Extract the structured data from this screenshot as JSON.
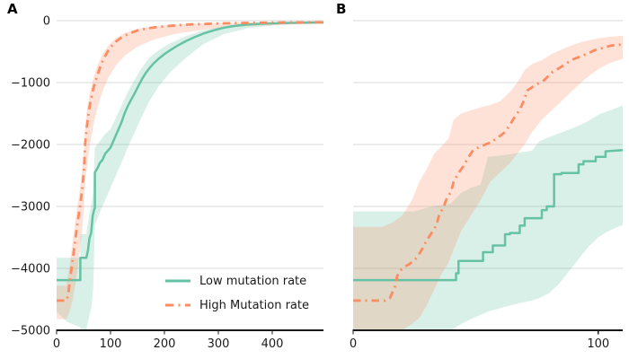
{
  "figure": {
    "panel_a_label": "A",
    "panel_b_label": "B",
    "colors": {
      "low_series": "#66c2a5",
      "high_series": "#fc8d62",
      "gridline": "#d9d9d9",
      "spine": "#1a1a1a",
      "tick_text": "#1a1a1a",
      "band_opacity": 0.25
    },
    "legend": {
      "items": [
        {
          "key": "low",
          "label": "Low mutation rate",
          "line_style": "solid"
        },
        {
          "key": "high",
          "label": "High Mutation rate",
          "line_style": "dashdot"
        }
      ]
    }
  },
  "chart_data": [
    {
      "type": "line",
      "panel": "A",
      "title": "",
      "xlabel": "",
      "ylabel": "",
      "xlim": [
        0,
        495
      ],
      "ylim": [
        -5000,
        0
      ],
      "xticks": [
        0,
        100,
        200,
        300,
        400
      ],
      "xticklabels": [
        "0",
        "100",
        "200",
        "300",
        "400"
      ],
      "yticks": [
        0,
        -1000,
        -2000,
        -3000,
        -4000,
        -5000
      ],
      "yticklabels": [
        "0",
        "−1000",
        "−2000",
        "−3000",
        "−4000",
        "−5000"
      ],
      "grid": true,
      "legend_position": "lower right",
      "series": [
        {
          "key": "low",
          "name": "Low mutation rate",
          "style": "solid",
          "x": [
            0,
            44,
            44,
            55,
            58,
            61,
            64,
            67,
            70,
            71,
            71,
            76,
            80,
            85,
            90,
            95,
            100,
            105,
            110,
            115,
            120,
            126,
            132,
            138,
            145,
            152,
            158,
            165,
            172,
            180,
            190,
            200,
            212,
            225,
            240,
            255,
            272,
            290,
            310,
            330,
            355,
            385,
            420,
            460,
            495
          ],
          "y": [
            -4190,
            -4190,
            -3830,
            -3830,
            -3720,
            -3510,
            -3430,
            -3150,
            -3040,
            -3030,
            -2450,
            -2380,
            -2300,
            -2250,
            -2150,
            -2100,
            -2050,
            -1950,
            -1850,
            -1750,
            -1650,
            -1500,
            -1380,
            -1280,
            -1170,
            -1050,
            -950,
            -850,
            -770,
            -690,
            -610,
            -540,
            -470,
            -400,
            -330,
            -270,
            -210,
            -160,
            -115,
            -85,
            -62,
            -47,
            -38,
            -32,
            -29
          ],
          "band": {
            "x": [
              0,
              20,
              44,
              44,
              55,
              60,
              65,
              68,
              71,
              80,
              90,
              100,
              110,
              120,
              132,
              145,
              158,
              172,
              190,
              212,
              240,
              272,
              310,
              355,
              420,
              495
            ],
            "upper": [
              -3830,
              -3830,
              -3830,
              -3450,
              -3450,
              -3150,
              -2950,
              -2750,
              -2050,
              -1950,
              -1830,
              -1750,
              -1570,
              -1380,
              -1150,
              -950,
              -760,
              -600,
              -470,
              -360,
              -250,
              -155,
              -85,
              -48,
              -30,
              -24
            ],
            "lower": [
              -4700,
              -4870,
              -4950,
              -5000,
              -5000,
              -4800,
              -4600,
              -4300,
              -3300,
              -3100,
              -2900,
              -2700,
              -2500,
              -2300,
              -2050,
              -1800,
              -1550,
              -1300,
              -1050,
              -820,
              -600,
              -380,
              -220,
              -120,
              -60,
              -38
            ]
          }
        },
        {
          "key": "high",
          "name": "High Mutation rate",
          "style": "dashdot",
          "x": [
            0,
            18,
            21,
            24,
            27,
            30,
            33,
            36,
            39,
            42,
            45,
            47,
            49,
            51,
            52,
            53,
            55,
            57,
            59,
            62,
            65,
            68,
            72,
            76,
            80,
            85,
            90,
            96,
            102,
            110,
            118,
            127,
            137,
            150,
            165,
            182,
            200,
            222,
            248,
            278,
            312,
            350,
            395,
            445,
            495
          ],
          "y": [
            -4520,
            -4520,
            -4450,
            -4250,
            -4050,
            -3850,
            -3650,
            -3450,
            -3250,
            -3080,
            -2900,
            -2750,
            -2580,
            -2380,
            -2180,
            -1980,
            -1800,
            -1650,
            -1500,
            -1350,
            -1220,
            -1100,
            -980,
            -870,
            -770,
            -660,
            -570,
            -480,
            -410,
            -340,
            -285,
            -240,
            -200,
            -160,
            -130,
            -108,
            -92,
            -76,
            -62,
            -52,
            -43,
            -37,
            -32,
            -29,
            -27
          ],
          "band": {
            "x": [
              0,
              18,
              24,
              30,
              36,
              42,
              47,
              51,
              53,
              57,
              62,
              68,
              76,
              85,
              96,
              110,
              127,
              150,
              182,
              222,
              278,
              350,
              445,
              495
            ],
            "upper": [
              -4280,
              -4280,
              -3950,
              -3550,
              -3150,
              -2800,
              -2450,
              -2050,
              -1700,
              -1400,
              -1150,
              -930,
              -720,
              -540,
              -400,
              -280,
              -200,
              -130,
              -88,
              -60,
              -42,
              -30,
              -24,
              -22
            ],
            "lower": [
              -4820,
              -4820,
              -4700,
              -4500,
              -4200,
              -3800,
              -3400,
              -3000,
              -2600,
              -2300,
              -2000,
              -1700,
              -1400,
              -1150,
              -920,
              -720,
              -560,
              -420,
              -300,
              -210,
              -140,
              -90,
              -60,
              -50
            ]
          }
        }
      ]
    },
    {
      "type": "line",
      "panel": "B",
      "title": "",
      "xlabel": "",
      "ylabel": "",
      "xlim": [
        0,
        110
      ],
      "ylim": [
        -5000,
        0
      ],
      "xticks": [
        0,
        100
      ],
      "xticklabels": [
        "0",
        "100"
      ],
      "yticks": [
        0,
        -1000,
        -2000,
        -3000,
        -4000,
        -5000
      ],
      "yticklabels": [],
      "grid": true,
      "legend_position": "none",
      "series": [
        {
          "key": "low",
          "name": "Low mutation rate",
          "style": "solid",
          "x": [
            0,
            42,
            42,
            43,
            43,
            53,
            53,
            57,
            57,
            62,
            62,
            64,
            64,
            68,
            68,
            70,
            70,
            77,
            77,
            79,
            79,
            82,
            82,
            85,
            85,
            92,
            92,
            94,
            94,
            99,
            99,
            103,
            103,
            110
          ],
          "y": [
            -4190,
            -4190,
            -4080,
            -4080,
            -3880,
            -3880,
            -3740,
            -3740,
            -3630,
            -3630,
            -3450,
            -3450,
            -3430,
            -3430,
            -3310,
            -3310,
            -3190,
            -3190,
            -3060,
            -3060,
            -3000,
            -3000,
            -2480,
            -2480,
            -2460,
            -2460,
            -2320,
            -2320,
            -2270,
            -2270,
            -2200,
            -2200,
            -2110,
            -2090
          ],
          "band": {
            "x": [
              0,
              25,
              32,
              40,
              44,
              48,
              52,
              55,
              62,
              68,
              73,
              76,
              80,
              84,
              88,
              92,
              96,
              100,
              104,
              108,
              110
            ],
            "upper": [
              -3080,
              -3080,
              -3000,
              -2950,
              -2780,
              -2700,
              -2650,
              -2200,
              -2170,
              -2130,
              -2100,
              -1950,
              -1880,
              -1820,
              -1760,
              -1700,
              -1620,
              -1520,
              -1460,
              -1400,
              -1370
            ],
            "lower": [
              -5000,
              -5000,
              -5000,
              -5000,
              -4900,
              -4820,
              -4750,
              -4700,
              -4620,
              -4560,
              -4520,
              -4480,
              -4400,
              -4250,
              -4050,
              -3850,
              -3650,
              -3500,
              -3400,
              -3330,
              -3300
            ]
          }
        },
        {
          "key": "high",
          "name": "High Mutation rate",
          "style": "dashdot",
          "x": [
            0,
            13,
            15,
            17,
            18,
            20,
            23,
            26,
            28,
            30,
            32,
            34,
            35,
            37,
            38,
            40,
            41,
            43,
            45,
            47,
            49,
            52,
            56,
            59,
            62,
            64,
            66,
            68,
            70,
            71,
            74,
            78,
            81,
            84,
            87,
            90,
            93,
            96,
            99,
            102,
            105,
            108,
            110
          ],
          "y": [
            -4520,
            -4520,
            -4480,
            -4300,
            -4120,
            -4000,
            -3930,
            -3830,
            -3700,
            -3550,
            -3430,
            -3300,
            -3150,
            -3000,
            -2890,
            -2760,
            -2600,
            -2460,
            -2350,
            -2210,
            -2090,
            -2030,
            -1970,
            -1890,
            -1800,
            -1680,
            -1550,
            -1440,
            -1260,
            -1130,
            -1050,
            -960,
            -840,
            -770,
            -690,
            -620,
            -575,
            -525,
            -470,
            -440,
            -405,
            -390,
            -385
          ],
          "band": {
            "x": [
              0,
              12,
              16,
              20,
              24,
              27,
              30,
              33,
              36,
              39,
              41,
              44,
              48,
              52,
              56,
              60,
              64,
              67,
              70,
              73,
              77,
              81,
              85,
              89,
              93,
              97,
              101,
              105,
              110
            ],
            "upper": [
              -3330,
              -3330,
              -3260,
              -3150,
              -2900,
              -2600,
              -2400,
              -2150,
              -2030,
              -1900,
              -1600,
              -1500,
              -1450,
              -1400,
              -1360,
              -1300,
              -1150,
              -1000,
              -800,
              -700,
              -640,
              -540,
              -470,
              -400,
              -350,
              -310,
              -280,
              -260,
              -245
            ],
            "lower": [
              -5000,
              -5000,
              -5000,
              -5000,
              -4900,
              -4800,
              -4600,
              -4350,
              -4100,
              -3900,
              -3700,
              -3400,
              -3150,
              -2900,
              -2600,
              -2450,
              -2300,
              -2150,
              -2000,
              -1800,
              -1600,
              -1450,
              -1300,
              -1150,
              -1000,
              -870,
              -760,
              -680,
              -620
            ]
          }
        }
      ]
    }
  ]
}
